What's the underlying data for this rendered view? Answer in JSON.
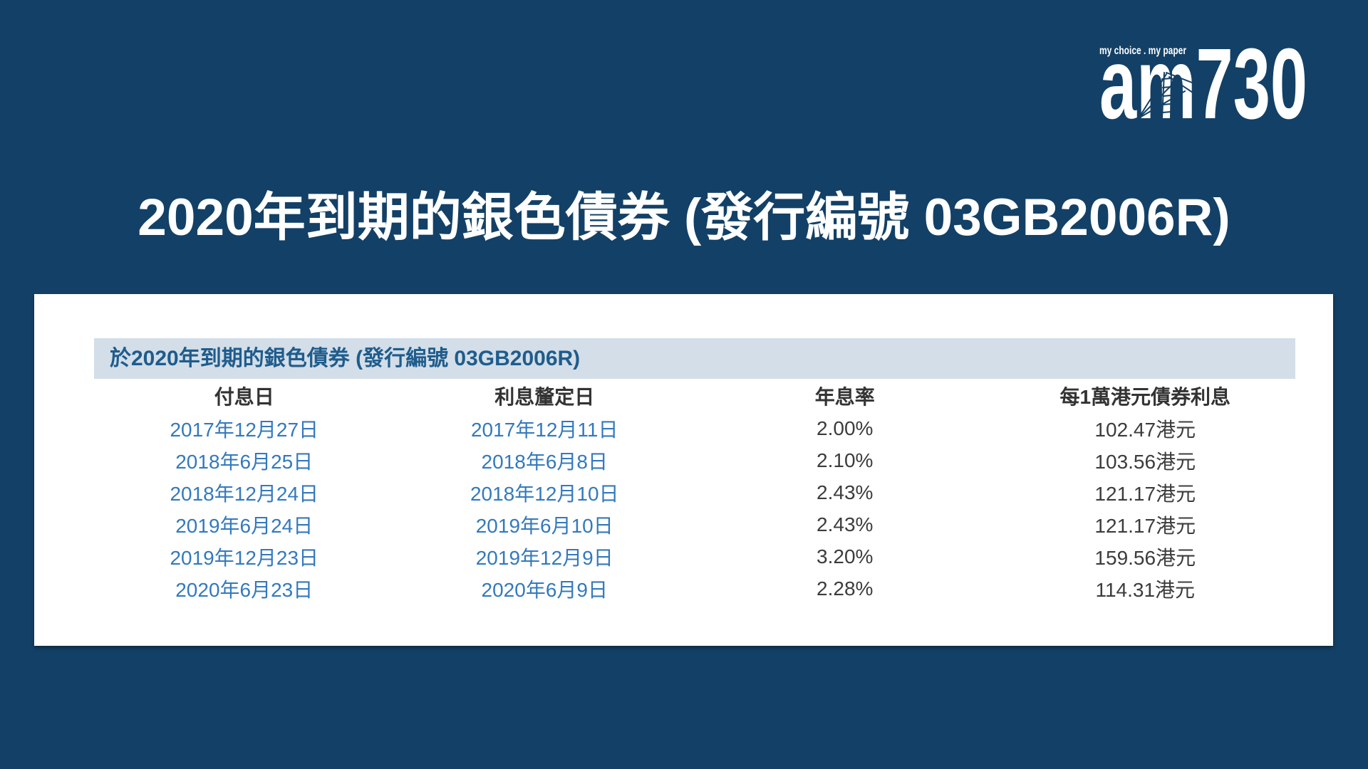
{
  "page": {
    "title": "2020年到期的銀色債券 (發行編號 03GB2006R)"
  },
  "logo": {
    "tagline": "my choice . my paper",
    "brand": "am730"
  },
  "colors": {
    "page_background": "#134066",
    "card_background": "#FFFFFF",
    "caption_background": "#D3DEE8",
    "caption_text": "#1F5C8C",
    "column_header_text": "#333333",
    "date_text_blue": "#3379BD",
    "value_text_gray": "#3C3C3C",
    "title_text": "#FFFFFF",
    "logo_text": "#FFFFFF"
  },
  "chart_data": {
    "type": "table",
    "title": "於2020年到期的銀色債券 (發行編號 03GB2006R)",
    "columns": [
      "付息日",
      "利息釐定日",
      "年息率",
      "每1萬港元債券利息"
    ],
    "rows": [
      [
        "2017年12月27日",
        "2017年12月11日",
        "2.00%",
        "102.47港元"
      ],
      [
        "2018年6月25日",
        "2018年6月8日",
        "2.10%",
        "103.56港元"
      ],
      [
        "2018年12月24日",
        "2018年12月10日",
        "2.43%",
        "121.17港元"
      ],
      [
        "2019年6月24日",
        "2019年6月10日",
        "2.43%",
        "121.17港元"
      ],
      [
        "2019年12月23日",
        "2019年12月9日",
        "3.20%",
        "159.56港元"
      ],
      [
        "2020年6月23日",
        "2020年6月9日",
        "2.28%",
        "114.31港元"
      ]
    ]
  }
}
